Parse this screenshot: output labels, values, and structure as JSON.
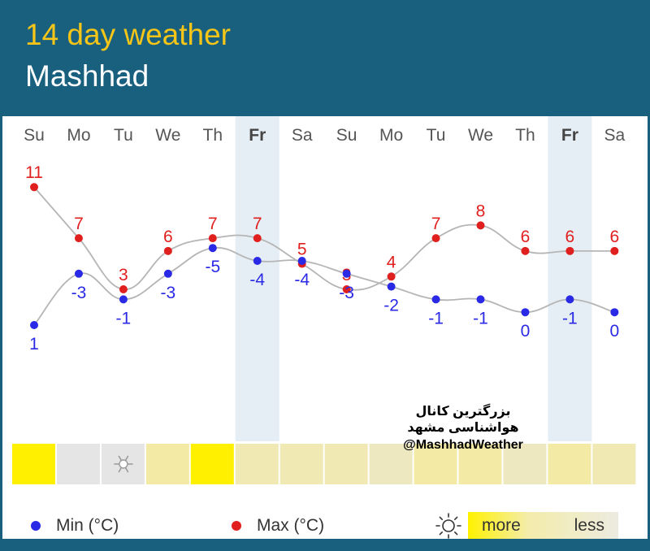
{
  "header": {
    "title": "14 day weather",
    "city": "Mashhad"
  },
  "watermark": {
    "line1": "بزرگترین کانال هواشناسی مشهد",
    "line2": "@MashhadWeather"
  },
  "legend": {
    "min_label": "Min (°C)",
    "max_label": "Max (°C)",
    "sun_more": "more",
    "sun_less": "less",
    "sun_icon": "sun-icon"
  },
  "colors": {
    "header_bg": "#19607f",
    "title_yellow": "#f5c518",
    "max_red": "#e0201e",
    "min_blue": "#2a2ae6",
    "weekend_band": "#e6eef5",
    "curve_gray": "#b5b5b5"
  },
  "chart_data": {
    "type": "line",
    "categories": [
      "Su",
      "Mo",
      "Tu",
      "We",
      "Th",
      "Fr",
      "Sa",
      "Su",
      "Mo",
      "Tu",
      "We",
      "Th",
      "Fr",
      "Sa"
    ],
    "highlighted_days": [
      5,
      12
    ],
    "series": [
      {
        "name": "Max (°C)",
        "values": [
          11,
          7,
          3,
          6,
          7,
          7,
          5,
          3,
          4,
          7,
          8,
          6,
          6,
          6
        ]
      },
      {
        "name": "Min (°C)",
        "values": [
          1,
          -3,
          -1,
          -3,
          -5,
          -4,
          -4,
          -3,
          -2,
          -1,
          -1,
          0,
          -1,
          0
        ]
      }
    ],
    "sunshine_level": [
      1.0,
      0.0,
      0.0,
      0.5,
      1.0,
      0.4,
      0.4,
      0.4,
      0.3,
      0.5,
      0.5,
      0.3,
      0.5,
      0.4
    ],
    "sunshine_icons": [
      "",
      "",
      "snow-icon",
      "",
      "",
      "",
      "",
      "",
      "",
      "",
      "",
      "",
      "",
      ""
    ],
    "ylabel": "",
    "xlabel": ""
  }
}
